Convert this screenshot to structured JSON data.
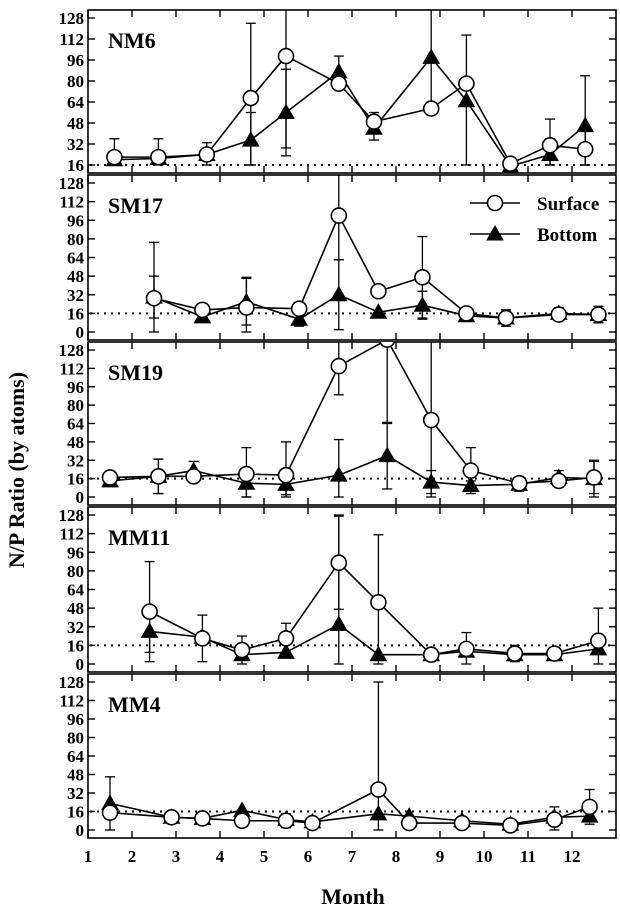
{
  "chart_data": {
    "type": "line",
    "xlabel": "Month",
    "ylabel": "N/P Ratio (by atoms)",
    "x_ticks": [
      "1",
      "2",
      "3",
      "4",
      "5",
      "6",
      "7",
      "8",
      "9",
      "10",
      "11",
      "12"
    ],
    "xlim": [
      1,
      13
    ],
    "y_ticks": [
      "0",
      "16",
      "32",
      "48",
      "64",
      "80",
      "96",
      "112",
      "128"
    ],
    "ylim": [
      0,
      128
    ],
    "reference_line": 16,
    "legend": {
      "surface": "Surface",
      "bottom": "Bottom",
      "placement": "top-right of second panel"
    },
    "panels": [
      {
        "name": "NM6",
        "ylim": [
          16,
          128
        ],
        "series": [
          {
            "name": "Surface",
            "marker": "open-circle",
            "x": [
              1.6,
              2.6,
              3.7,
              4.7,
              5.5,
              6.7,
              7.5,
              8.8,
              9.6,
              10.6,
              11.5,
              12.3
            ],
            "y": [
              22,
              22,
              24,
              67,
              99,
              78,
              49,
              59,
              78,
              17,
              31,
              28
            ],
            "err": [
              null,
              null,
              null,
              57,
              70,
              null,
              7,
              null,
              null,
              null,
              20,
              15
            ]
          },
          {
            "name": "Bottom",
            "marker": "filled-triangle",
            "x": [
              1.6,
              2.6,
              3.7,
              4.7,
              5.5,
              6.7,
              7.5,
              8.8,
              9.6,
              10.6,
              11.5,
              12.3
            ],
            "y": [
              20,
              21,
              24,
              35,
              56,
              87,
              44,
              98,
              65,
              15,
              24,
              46
            ],
            "err": [
              16,
              15,
              9,
              21,
              33,
              12,
              9,
              40,
              50,
              0,
              12,
              38
            ]
          }
        ]
      },
      {
        "name": "SM17",
        "ylim": [
          0,
          128
        ],
        "series": [
          {
            "name": "Surface",
            "marker": "open-circle",
            "x": [
              2.5,
              3.6,
              4.6,
              5.8,
              6.7,
              7.6,
              8.6,
              9.6,
              10.5,
              11.7,
              12.6
            ],
            "y": [
              29,
              19,
              21,
              20,
              100,
              35,
              47,
              16,
              12,
              15,
              15
            ],
            "err": [
              48,
              null,
              26,
              null,
              38,
              null,
              35,
              null,
              7,
              5,
              7
            ]
          },
          {
            "name": "Bottom",
            "marker": "filled-triangle",
            "x": [
              2.5,
              3.6,
              4.6,
              5.8,
              6.7,
              7.6,
              8.6,
              9.6,
              10.5,
              11.7,
              12.6
            ],
            "y": [
              30,
              13,
              26,
              11,
              32,
              17,
              23,
              14,
              12,
              16,
              15
            ],
            "err": [
              18,
              4,
              20,
              6,
              30,
              null,
              12,
              null,
              7,
              5,
              7
            ]
          }
        ]
      },
      {
        "name": "SM19",
        "ylim": [
          0,
          128
        ],
        "series": [
          {
            "name": "Surface",
            "marker": "open-circle",
            "x": [
              1.5,
              2.6,
              3.4,
              4.6,
              5.5,
              6.7,
              7.8,
              8.8,
              9.7,
              10.8,
              11.7,
              12.5
            ],
            "y": [
              17,
              18,
              18,
              20,
              19,
              114,
              137,
              67,
              23,
              12,
              14,
              17
            ],
            "err": [
              null,
              15,
              null,
              23,
              29,
              25,
              73,
              69,
              20,
              null,
              null,
              14
            ]
          },
          {
            "name": "Bottom",
            "marker": "filled-triangle",
            "x": [
              1.5,
              2.6,
              3.4,
              4.6,
              5.5,
              6.7,
              7.8,
              8.8,
              9.7,
              10.8,
              11.7,
              12.5
            ],
            "y": [
              14,
              18,
              23,
              12,
              11,
              19,
              36,
              13,
              10,
              11,
              17,
              16
            ],
            "err": [
              null,
              15,
              8,
              13,
              9,
              31,
              29,
              10,
              4,
              6,
              6,
              16
            ]
          }
        ]
      },
      {
        "name": "MM11",
        "ylim": [
          0,
          128
        ],
        "series": [
          {
            "name": "Surface",
            "marker": "open-circle",
            "x": [
              2.4,
              3.6,
              4.5,
              5.5,
              6.7,
              7.6,
              8.8,
              9.6,
              10.7,
              11.6,
              12.6
            ],
            "y": [
              45,
              22,
              12,
              22,
              87,
              53,
              8,
              13,
              9,
              9,
              20
            ],
            "err": [
              43,
              20,
              12,
              13,
              40,
              58,
              null,
              14,
              7,
              5,
              28
            ]
          },
          {
            "name": "Bottom",
            "marker": "filled-triangle",
            "x": [
              2.4,
              3.6,
              4.5,
              5.5,
              6.7,
              7.6,
              8.8,
              9.6,
              10.7,
              11.6,
              12.6
            ],
            "y": [
              28,
              23,
              8,
              10,
              34,
              8,
              8,
              11,
              8,
              8,
              13
            ],
            "err": [
              18,
              null,
              null,
              null,
              94,
              null,
              null,
              null,
              null,
              null,
              null
            ]
          }
        ]
      },
      {
        "name": "MM4",
        "ylim": [
          0,
          128
        ],
        "series": [
          {
            "name": "Surface",
            "marker": "open-circle",
            "x": [
              1.5,
              2.9,
              3.6,
              4.5,
              5.5,
              6.1,
              7.6,
              8.3,
              9.5,
              10.6,
              11.6,
              12.4
            ],
            "y": [
              15,
              11,
              10,
              8,
              8,
              6,
              35,
              6,
              6,
              4,
              9,
              20
            ],
            "err": [
              null,
              null,
              null,
              null,
              6,
              null,
              93,
              null,
              5,
              null,
              11,
              15
            ]
          },
          {
            "name": "Bottom",
            "marker": "filled-triangle",
            "x": [
              1.5,
              2.9,
              3.6,
              4.5,
              5.5,
              6.1,
              7.6,
              8.3,
              9.5,
              10.6,
              11.6,
              12.4
            ],
            "y": [
              23,
              11,
              10,
              17,
              9,
              7,
              14,
              12,
              8,
              5,
              11,
              12
            ],
            "err": [
              23,
              5,
              5,
              null,
              null,
              null,
              null,
              null,
              null,
              null,
              null,
              null
            ]
          }
        ]
      }
    ]
  }
}
